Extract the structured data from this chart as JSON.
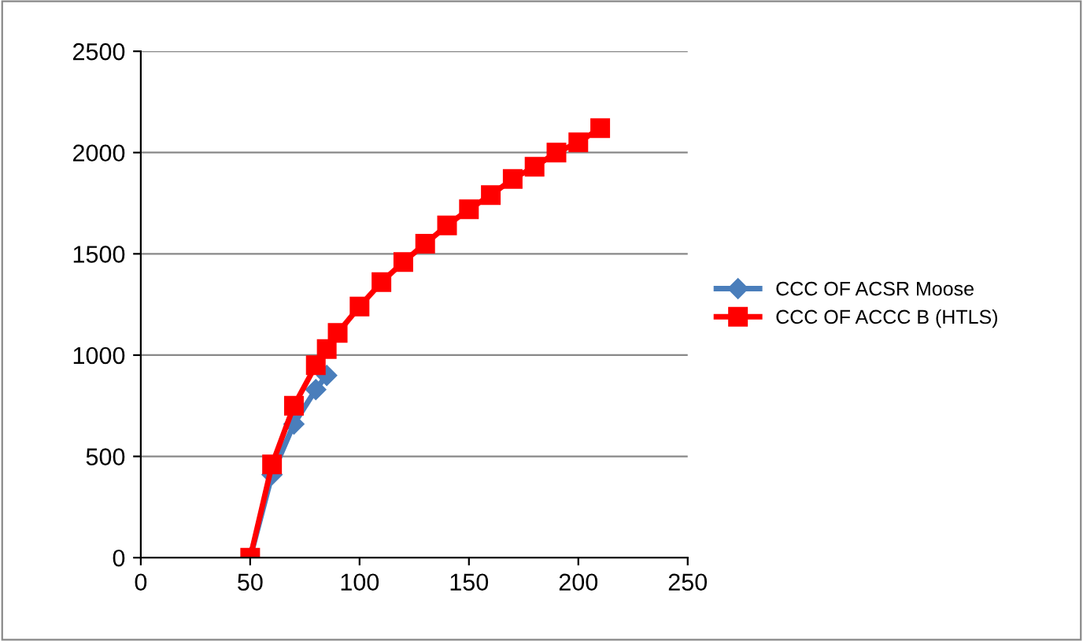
{
  "chart_data": {
    "type": "line",
    "series": [
      {
        "name": "CCC OF ACSR Moose",
        "color": "#4a7ebb",
        "marker": "diamond",
        "x": [
          50,
          60,
          70,
          80,
          85
        ],
        "values": [
          0,
          410,
          660,
          830,
          900
        ]
      },
      {
        "name": "CCC OF ACCC B (HTLS)",
        "color": "#ff0000",
        "marker": "square",
        "x": [
          50,
          60,
          70,
          80,
          85,
          90,
          100,
          110,
          120,
          130,
          140,
          150,
          160,
          170,
          180,
          190,
          200,
          210
        ],
        "values": [
          0,
          460,
          750,
          950,
          1030,
          1110,
          1240,
          1360,
          1460,
          1550,
          1640,
          1720,
          1790,
          1870,
          1930,
          2000,
          2050,
          2120
        ]
      }
    ],
    "xlim": [
      0,
      250
    ],
    "xticks": [
      0,
      50,
      100,
      150,
      200,
      250
    ],
    "ylim": [
      0,
      2500
    ],
    "yticks": [
      0,
      500,
      1000,
      1500,
      2000,
      2500
    ],
    "grid": "y",
    "legend": "right",
    "line_style": "solid"
  }
}
